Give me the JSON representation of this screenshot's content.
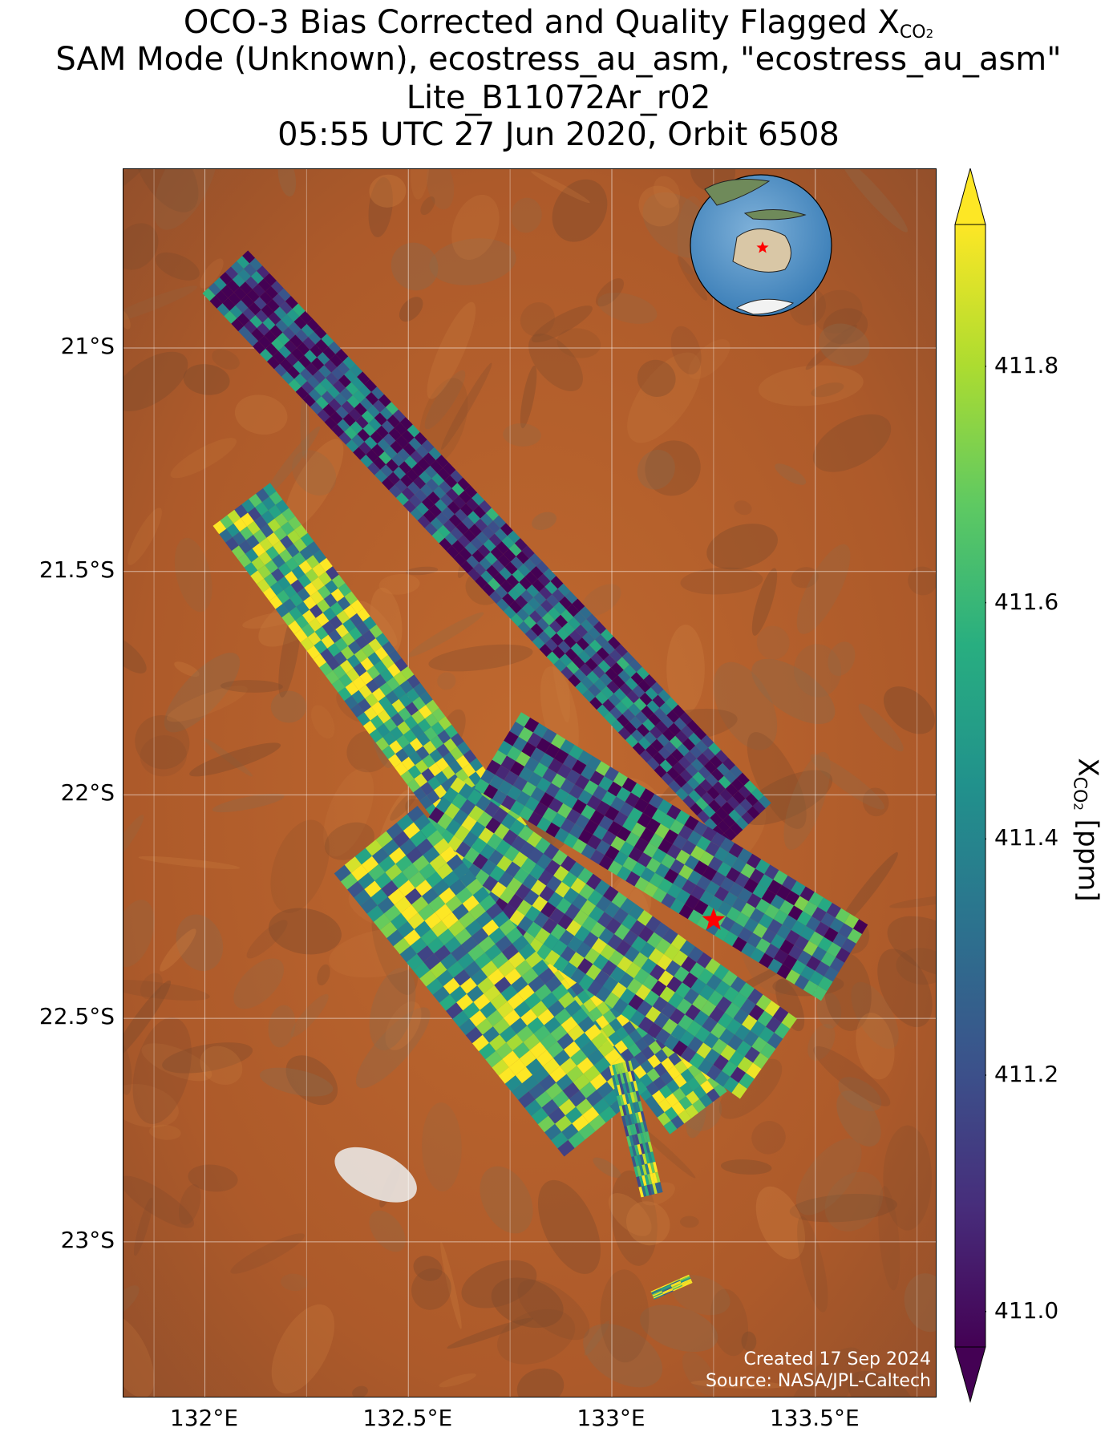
{
  "title": {
    "line1_prefix": "OCO-3 Bias Corrected and Quality Flagged X",
    "line1_sub": "CO",
    "line1_sub2": "2",
    "line2": "SAM Mode (Unknown), ecostress_au_asm, \"ecostress_au_asm\"",
    "line3": "Lite_B11072Ar_r02",
    "line4": "05:55 UTC 27 Jun 2020, Orbit 6508"
  },
  "map": {
    "lat_range": [
      -23.35,
      -20.6
    ],
    "lon_range": [
      131.8,
      133.8
    ],
    "lat_ticks": [
      {
        "value": -21.0,
        "label": "21°S"
      },
      {
        "value": -21.5,
        "label": "21.5°S"
      },
      {
        "value": -22.0,
        "label": "22°S"
      },
      {
        "value": -22.5,
        "label": "22.5°S"
      },
      {
        "value": -23.0,
        "label": "23°S"
      }
    ],
    "lon_ticks": [
      {
        "value": 132.0,
        "label": "132°E"
      },
      {
        "value": 132.5,
        "label": "132.5°E"
      },
      {
        "value": 133.0,
        "label": "133°E"
      },
      {
        "value": 133.5,
        "label": "133.5°E"
      }
    ],
    "target": {
      "lat": -22.28,
      "lon": 133.25,
      "marker": "red-star"
    },
    "background": "satellite imagery",
    "inset": {
      "type": "globe",
      "region": "Australia",
      "marker": "red-star"
    },
    "credits": {
      "line1": "Created 17 Sep 2024",
      "line2": "Source: NASA/JPL-Caltech"
    }
  },
  "chart_data": {
    "type": "heatmap",
    "colormap": "viridis",
    "range": [
      410.97,
      411.92
    ],
    "extend": "both",
    "colorbar_ticks": [
      411.0,
      411.2,
      411.4,
      411.6,
      411.8
    ],
    "colorbar_tick_labels": [
      "411.0",
      "411.2",
      "411.4",
      "411.6",
      "411.8"
    ],
    "colorbar_label_prefix": "X",
    "colorbar_label_sub": "CO",
    "colorbar_label_sub2": "2",
    "colorbar_label_suffix": " [ppm]",
    "swaths": [
      {
        "start": [
          -20.83,
          132.05
        ],
        "end": [
          -22.08,
          133.35
        ],
        "width_deg": 0.14,
        "mean": 411.15
      },
      {
        "start": [
          -21.35,
          132.09
        ],
        "end": [
          -22.72,
          133.22
        ],
        "width_deg": 0.16,
        "mean": 411.6
      },
      {
        "start": [
          -21.9,
          132.72
        ],
        "end": [
          -22.38,
          133.58
        ],
        "width_deg": 0.2,
        "mean": 411.3
      },
      {
        "start": [
          -22.05,
          132.55
        ],
        "end": [
          -22.6,
          133.4
        ],
        "width_deg": 0.22,
        "mean": 411.45
      },
      {
        "start": [
          -22.1,
          132.42
        ],
        "end": [
          -22.75,
          133.0
        ],
        "width_deg": 0.24,
        "mean": 411.6
      },
      {
        "start": [
          -22.6,
          133.02
        ],
        "end": [
          -22.9,
          133.1
        ],
        "width_deg": 0.05,
        "mean": 411.6
      },
      {
        "start": [
          -23.12,
          133.1
        ],
        "end": [
          -23.08,
          133.2
        ],
        "width_deg": 0.02,
        "mean": 411.7
      }
    ]
  }
}
